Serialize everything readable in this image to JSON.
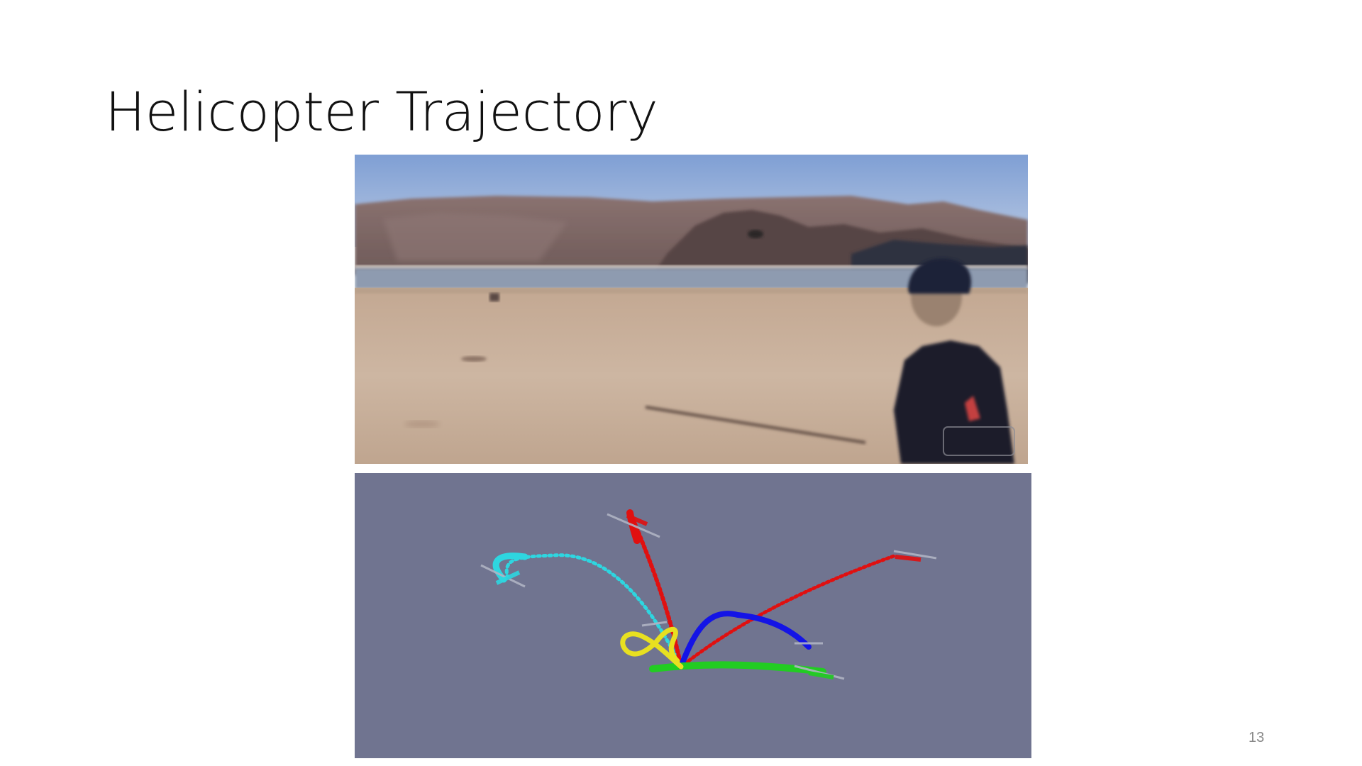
{
  "slide": {
    "title": "Helicopter Trajectory",
    "page_number": "13"
  },
  "images": {
    "photo": {
      "icon": "helicopter-flight-video-frame"
    },
    "simulation": {
      "icon": "helicopter-trajectory-3d-render"
    }
  },
  "colors": {
    "sky_top": "#7f9fd4",
    "sky_bottom": "#b8c8e2",
    "mountain": "#7a6460",
    "mountain_dark": "#4a3c3c",
    "water": "#8e9bb0",
    "sand": "#c9b29c",
    "sand_dark": "#b59c86",
    "jacket": "#1a1d2c",
    "sim_background": "#707490",
    "trajectory_red": "#e01010",
    "trajectory_cyan": "#2ed6e0",
    "trajectory_blue": "#1414e6",
    "trajectory_green": "#22cc22",
    "trajectory_yellow": "#e8e020"
  }
}
